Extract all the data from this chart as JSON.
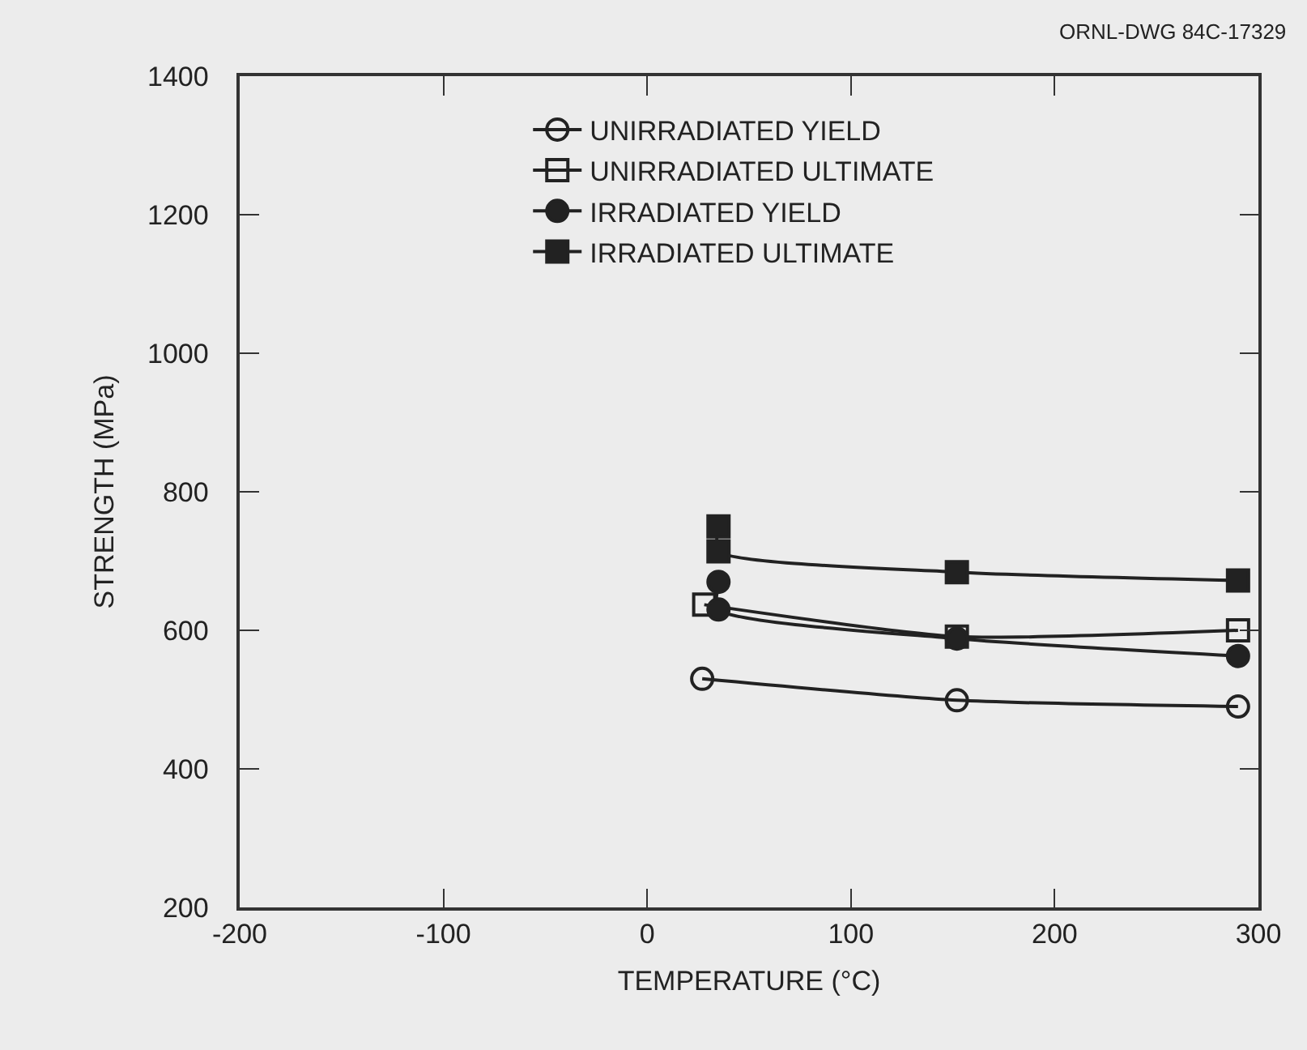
{
  "chart_data": {
    "type": "line",
    "xlabel": "TEMPERATURE (°C)",
    "ylabel": "STRENGTH (MPa)",
    "annotations": [
      "ORNL-DWG 84C-17329"
    ],
    "xlim": [
      -200,
      300
    ],
    "xticks": [
      -200,
      -100,
      0,
      100,
      200,
      300
    ],
    "ylim": [
      200,
      1400
    ],
    "yticks": [
      200,
      400,
      600,
      800,
      1000,
      1200,
      1400
    ],
    "grid": false,
    "legend": "top",
    "line_style": "solid",
    "series": [
      {
        "name": "UNIRRADIATED YIELD",
        "color": "#222222",
        "marker": "circle",
        "x": [
          27,
          152,
          290
        ],
        "values": [
          530,
          499,
          490
        ]
      },
      {
        "name": "UNIRRADIATED ULTIMATE",
        "color": "#222222",
        "marker": "square",
        "x": [
          28,
          152,
          290
        ],
        "values": [
          637,
          591,
          600
        ]
      },
      {
        "name": "IRRADIATED YIELD",
        "color": "#222222",
        "marker": "circle",
        "x": [
          35,
          35,
          152,
          290
        ],
        "values": [
          670,
          630,
          588,
          563
        ]
      },
      {
        "name": "IRRADIATED ULTIMATE",
        "color": "#222222",
        "marker": "square",
        "x": [
          35,
          35,
          152,
          290
        ],
        "values": [
          750,
          714,
          684,
          672
        ]
      }
    ]
  }
}
